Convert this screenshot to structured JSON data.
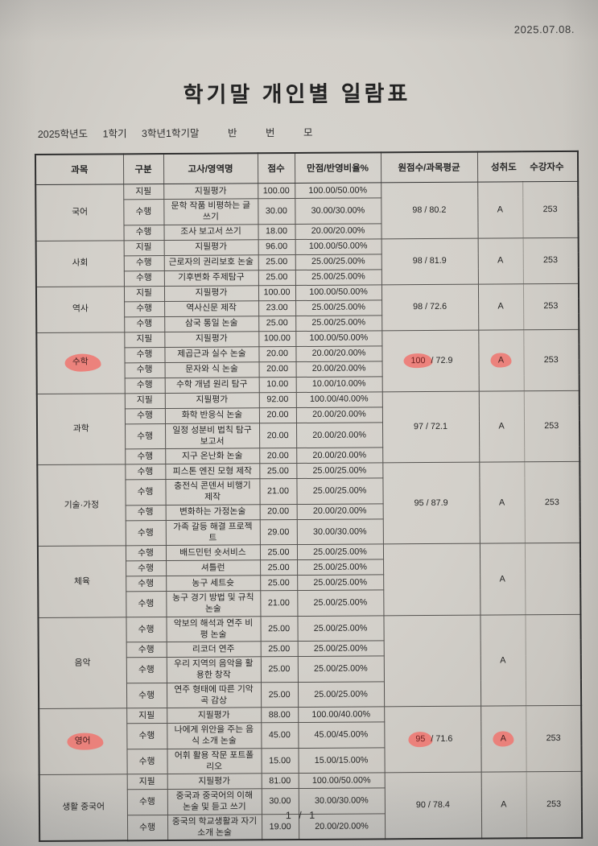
{
  "meta": {
    "scan_date": "2025.07.08.",
    "page_number": "1 / 1"
  },
  "title": "학기말 개인별 일람표",
  "term_info": {
    "year": "2025학년도",
    "semester": "1학기",
    "exam": "3학년1학기말",
    "class_label": "반",
    "number_label": "번",
    "name_label": "모"
  },
  "table": {
    "headers": {
      "subject": "과목",
      "category": "구분",
      "exam_area": "고사/영역명",
      "score": "점수",
      "max_ratio": "만점/반영비율%",
      "raw_avg": "원점수/과목평균",
      "achievement": "성취도",
      "students": "수강자수"
    },
    "raw_separator": " / ",
    "subjects": [
      {
        "name": "국어",
        "name_highlight": false,
        "raw": "98",
        "avg": "80.2",
        "raw_highlight": false,
        "achievement": "A",
        "achievement_highlight": false,
        "students": "253",
        "rows": [
          {
            "category": "지필",
            "area": "지필평가",
            "score": "100.00",
            "ratio": "100.00/50.00%"
          },
          {
            "category": "수행",
            "area": "문학 작품 비평하는 글 쓰기",
            "score": "30.00",
            "ratio": "30.00/30.00%"
          },
          {
            "category": "수행",
            "area": "조사 보고서 쓰기",
            "score": "18.00",
            "ratio": "20.00/20.00%"
          }
        ]
      },
      {
        "name": "사회",
        "name_highlight": false,
        "raw": "98",
        "avg": "81.9",
        "raw_highlight": false,
        "achievement": "A",
        "achievement_highlight": false,
        "students": "253",
        "rows": [
          {
            "category": "지필",
            "area": "지필평가",
            "score": "96.00",
            "ratio": "100.00/50.00%"
          },
          {
            "category": "수행",
            "area": "근로자의 권리보호 논술",
            "score": "25.00",
            "ratio": "25.00/25.00%"
          },
          {
            "category": "수행",
            "area": "기후변화 주제탐구",
            "score": "25.00",
            "ratio": "25.00/25.00%"
          }
        ]
      },
      {
        "name": "역사",
        "name_highlight": false,
        "raw": "98",
        "avg": "72.6",
        "raw_highlight": false,
        "achievement": "A",
        "achievement_highlight": false,
        "students": "253",
        "rows": [
          {
            "category": "지필",
            "area": "지필평가",
            "score": "100.00",
            "ratio": "100.00/50.00%"
          },
          {
            "category": "수행",
            "area": "역사신문 제작",
            "score": "23.00",
            "ratio": "25.00/25.00%"
          },
          {
            "category": "수행",
            "area": "삼국 통일 논술",
            "score": "25.00",
            "ratio": "25.00/25.00%"
          }
        ]
      },
      {
        "name": "수학",
        "name_highlight": true,
        "raw": "100",
        "avg": "72.9",
        "raw_highlight": true,
        "achievement": "A",
        "achievement_highlight": true,
        "students": "253",
        "rows": [
          {
            "category": "지필",
            "area": "지필평가",
            "score": "100.00",
            "ratio": "100.00/50.00%"
          },
          {
            "category": "수행",
            "area": "제곱근과 실수 논술",
            "score": "20.00",
            "ratio": "20.00/20.00%"
          },
          {
            "category": "수행",
            "area": "문자와 식 논술",
            "score": "20.00",
            "ratio": "20.00/20.00%"
          },
          {
            "category": "수행",
            "area": "수학 개념 원리 탐구",
            "score": "10.00",
            "ratio": "10.00/10.00%"
          }
        ]
      },
      {
        "name": "과학",
        "name_highlight": false,
        "raw": "97",
        "avg": "72.1",
        "raw_highlight": false,
        "achievement": "A",
        "achievement_highlight": false,
        "students": "253",
        "rows": [
          {
            "category": "지필",
            "area": "지필평가",
            "score": "92.00",
            "ratio": "100.00/40.00%"
          },
          {
            "category": "수행",
            "area": "화학 반응식 논술",
            "score": "20.00",
            "ratio": "20.00/20.00%"
          },
          {
            "category": "수행",
            "area": "일정 성분비 법칙 탐구 보고서",
            "score": "20.00",
            "ratio": "20.00/20.00%"
          },
          {
            "category": "수행",
            "area": "지구 온난화 논술",
            "score": "20.00",
            "ratio": "20.00/20.00%"
          }
        ]
      },
      {
        "name": "기술·가정",
        "name_highlight": false,
        "raw": "95",
        "avg": "87.9",
        "raw_highlight": false,
        "achievement": "A",
        "achievement_highlight": false,
        "students": "253",
        "rows": [
          {
            "category": "수행",
            "area": "피스톤 엔진 모형 제작",
            "score": "25.00",
            "ratio": "25.00/25.00%"
          },
          {
            "category": "수행",
            "area": "충전식 콘덴서 비행기 제작",
            "score": "21.00",
            "ratio": "25.00/25.00%"
          },
          {
            "category": "수행",
            "area": "변화하는 가정논술",
            "score": "20.00",
            "ratio": "20.00/20.00%"
          },
          {
            "category": "수행",
            "area": "가족 갈등 해결 프로젝트",
            "score": "29.00",
            "ratio": "30.00/30.00%"
          }
        ]
      },
      {
        "name": "체육",
        "name_highlight": false,
        "raw": "",
        "avg": "",
        "raw_highlight": false,
        "achievement": "A",
        "achievement_highlight": false,
        "students": "",
        "rows": [
          {
            "category": "수행",
            "area": "배드민턴 숏서비스",
            "score": "25.00",
            "ratio": "25.00/25.00%"
          },
          {
            "category": "수행",
            "area": "셔틀런",
            "score": "25.00",
            "ratio": "25.00/25.00%"
          },
          {
            "category": "수행",
            "area": "농구 세트슛",
            "score": "25.00",
            "ratio": "25.00/25.00%"
          },
          {
            "category": "수행",
            "area": "농구 경기 방법 및 규칙 논술",
            "score": "21.00",
            "ratio": "25.00/25.00%"
          }
        ]
      },
      {
        "name": "음악",
        "name_highlight": false,
        "raw": "",
        "avg": "",
        "raw_highlight": false,
        "achievement": "A",
        "achievement_highlight": false,
        "students": "",
        "rows": [
          {
            "category": "수행",
            "area": "악보의 해석과 연주 비평 논술",
            "score": "25.00",
            "ratio": "25.00/25.00%"
          },
          {
            "category": "수행",
            "area": "리코더 연주",
            "score": "25.00",
            "ratio": "25.00/25.00%"
          },
          {
            "category": "수행",
            "area": "우리 지역의 음악을 활용한 창작",
            "score": "25.00",
            "ratio": "25.00/25.00%"
          },
          {
            "category": "수행",
            "area": "연주 형태에 따른 기악곡 감상",
            "score": "25.00",
            "ratio": "25.00/25.00%"
          }
        ]
      },
      {
        "name": "영어",
        "name_highlight": true,
        "raw": "95",
        "avg": "71.6",
        "raw_highlight": true,
        "achievement": "A",
        "achievement_highlight": true,
        "students": "253",
        "rows": [
          {
            "category": "지필",
            "area": "지필평가",
            "score": "88.00",
            "ratio": "100.00/40.00%"
          },
          {
            "category": "수행",
            "area": "나에게 위안을 주는 음식 소개 논술",
            "score": "45.00",
            "ratio": "45.00/45.00%"
          },
          {
            "category": "수행",
            "area": "어휘 활용 작문 포트폴리오",
            "score": "15.00",
            "ratio": "15.00/15.00%"
          }
        ]
      },
      {
        "name": "생활 중국어",
        "name_highlight": false,
        "raw": "90",
        "avg": "78.4",
        "raw_highlight": false,
        "achievement": "A",
        "achievement_highlight": false,
        "students": "253",
        "rows": [
          {
            "category": "지필",
            "area": "지필평가",
            "score": "81.00",
            "ratio": "100.00/50.00%"
          },
          {
            "category": "수행",
            "area": "중국과 중국어의 이해 논술 및 듣고 쓰기",
            "score": "30.00",
            "ratio": "30.00/30.00%"
          },
          {
            "category": "수행",
            "area": "중국의 학교생활과 자기 소개 논술",
            "score": "19.00",
            "ratio": "20.00/20.00%"
          }
        ]
      }
    ]
  }
}
